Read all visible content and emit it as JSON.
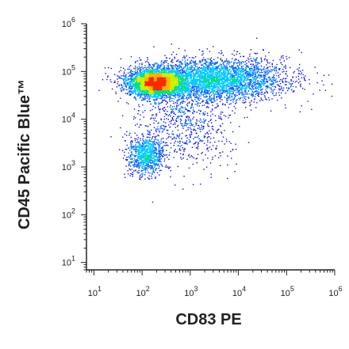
{
  "chart_data": {
    "type": "scatter",
    "style": "flow-cytometry-density-dot-plot",
    "xlabel": "CD83 PE",
    "ylabel": "CD45 Pacific Blue™",
    "x_scale": "log",
    "y_scale": "log",
    "xlim": [
      7,
      1000000
    ],
    "ylim": [
      7,
      1000000
    ],
    "x_ticks": [
      {
        "value": 10,
        "label_base": "10",
        "label_exp": "1"
      },
      {
        "value": 100,
        "label_base": "10",
        "label_exp": "2"
      },
      {
        "value": 1000,
        "label_base": "10",
        "label_exp": "3"
      },
      {
        "value": 10000,
        "label_base": "10",
        "label_exp": "4"
      },
      {
        "value": 100000,
        "label_base": "10",
        "label_exp": "5"
      },
      {
        "value": 1000000,
        "label_base": "10",
        "label_exp": "6"
      }
    ],
    "y_ticks": [
      {
        "value": 10,
        "label_base": "10",
        "label_exp": "1"
      },
      {
        "value": 100,
        "label_base": "10",
        "label_exp": "2"
      },
      {
        "value": 1000,
        "label_base": "10",
        "label_exp": "3"
      },
      {
        "value": 10000,
        "label_base": "10",
        "label_exp": "4"
      },
      {
        "value": 100000,
        "label_base": "10",
        "label_exp": "5"
      },
      {
        "value": 1000000,
        "label_base": "10",
        "label_exp": "6"
      }
    ],
    "grid": false,
    "legend": "none",
    "populations": [
      {
        "center_x": 200,
        "center_y": 60000,
        "log_spread_x": 0.28,
        "log_spread_y": 0.14,
        "weight": 0.42
      },
      {
        "center_x": 3000,
        "center_y": 70000,
        "log_spread_x": 0.75,
        "log_spread_y": 0.22,
        "weight": 0.4
      },
      {
        "center_x": 120,
        "center_y": 1800,
        "log_spread_x": 0.18,
        "log_spread_y": 0.2,
        "weight": 0.1
      },
      {
        "center_x": 800,
        "center_y": 8000,
        "log_spread_x": 0.5,
        "log_spread_y": 0.45,
        "weight": 0.08
      }
    ],
    "density_colors": [
      "#0a12e6",
      "#0066ff",
      "#00c8ff",
      "#00e07a",
      "#c8f000",
      "#ffb400",
      "#ff2a00"
    ],
    "axis_color": "#222222"
  }
}
